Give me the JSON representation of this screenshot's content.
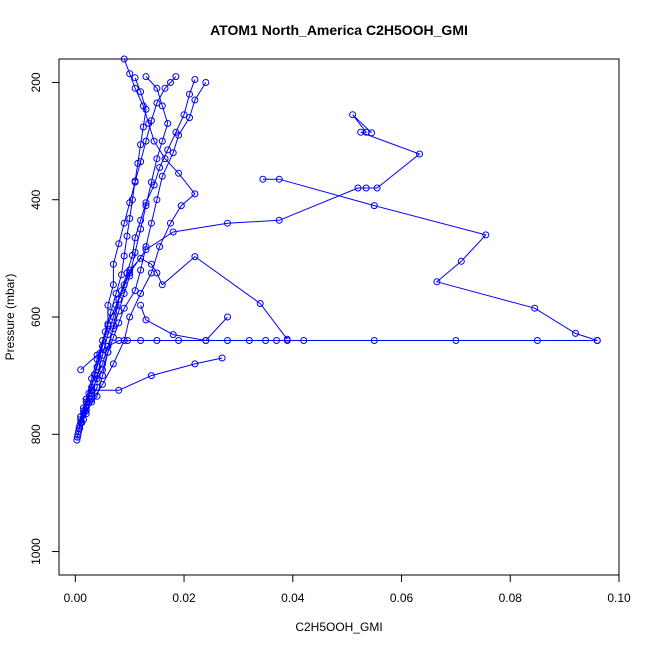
{
  "chart_data": {
    "type": "line",
    "title": "ATOM1 North_America C2H5OOH_GMI",
    "xlabel": "C2H5OOH_GMI",
    "ylabel": "Pressure (mbar)",
    "xlim": [
      -0.003,
      0.1
    ],
    "ylim": [
      1040,
      160
    ],
    "y_reversed": true,
    "x_ticks": [
      "0.00",
      "0.02",
      "0.04",
      "0.06",
      "0.08",
      "0.10"
    ],
    "x_tick_values": [
      0.0,
      0.02,
      0.04,
      0.06,
      0.08,
      0.1
    ],
    "y_ticks": [
      "200",
      "400",
      "600",
      "800",
      "1000"
    ],
    "y_tick_values": [
      200,
      400,
      600,
      800,
      1000
    ],
    "grid": false,
    "legend": "none",
    "color": "#0000ff",
    "marker": "open-circle",
    "series": [
      {
        "points": [
          [
            0.0003,
            810
          ],
          [
            0.0005,
            800
          ],
          [
            0.0008,
            785
          ],
          [
            0.001,
            770
          ],
          [
            0.0015,
            755
          ],
          [
            0.002,
            740
          ],
          [
            0.003,
            725
          ],
          [
            0.004,
            705
          ],
          [
            0.005,
            690
          ],
          [
            0.006,
            660
          ],
          [
            0.007,
            635
          ],
          [
            0.008,
            610
          ],
          [
            0.009,
            585
          ],
          [
            0.011,
            555
          ],
          [
            0.012,
            520
          ],
          [
            0.013,
            480
          ],
          [
            0.014,
            440
          ],
          [
            0.015,
            400
          ],
          [
            0.016,
            360
          ],
          [
            0.018,
            320
          ],
          [
            0.019,
            290
          ],
          [
            0.021,
            260
          ],
          [
            0.022,
            230
          ],
          [
            0.024,
            200
          ]
        ]
      },
      {
        "points": [
          [
            0.0004,
            805
          ],
          [
            0.0007,
            790
          ],
          [
            0.001,
            775
          ],
          [
            0.002,
            760
          ],
          [
            0.003,
            740
          ],
          [
            0.004,
            720
          ],
          [
            0.004,
            700
          ],
          [
            0.005,
            680
          ],
          [
            0.006,
            650
          ],
          [
            0.007,
            620
          ],
          [
            0.008,
            590
          ],
          [
            0.009,
            560
          ],
          [
            0.01,
            530
          ],
          [
            0.011,
            490
          ],
          [
            0.012,
            450
          ],
          [
            0.013,
            410
          ],
          [
            0.014,
            370
          ],
          [
            0.015,
            330
          ],
          [
            0.016,
            300
          ],
          [
            0.017,
            270
          ],
          [
            0.016,
            240
          ],
          [
            0.015,
            210
          ],
          [
            0.013,
            190
          ]
        ]
      },
      {
        "points": [
          [
            0.0005,
            800
          ],
          [
            0.001,
            780
          ],
          [
            0.0015,
            760
          ],
          [
            0.002,
            745
          ],
          [
            0.003,
            725
          ],
          [
            0.008,
            725
          ],
          [
            0.014,
            700
          ],
          [
            0.022,
            680
          ],
          [
            0.027,
            670
          ]
        ]
      },
      {
        "points": [
          [
            0.001,
            690
          ],
          [
            0.004,
            665
          ],
          [
            0.006,
            650
          ],
          [
            0.008,
            640
          ],
          [
            0.012,
            640
          ],
          [
            0.015,
            640
          ],
          [
            0.019,
            640
          ],
          [
            0.024,
            640
          ],
          [
            0.028,
            640
          ],
          [
            0.032,
            640
          ],
          [
            0.035,
            640
          ],
          [
            0.037,
            640
          ],
          [
            0.039,
            640
          ],
          [
            0.042,
            640
          ],
          [
            0.055,
            640
          ],
          [
            0.07,
            640
          ],
          [
            0.085,
            640
          ],
          [
            0.096,
            640
          ]
        ]
      },
      {
        "points": [
          [
            0.0096,
            640
          ],
          [
            0.096,
            640
          ],
          [
            0.092,
            628
          ],
          [
            0.0845,
            585
          ],
          [
            0.0665,
            540
          ],
          [
            0.071,
            505
          ],
          [
            0.0755,
            460
          ],
          [
            0.055,
            410
          ],
          [
            0.0375,
            365
          ],
          [
            0.0345,
            365
          ]
        ]
      },
      {
        "points": [
          [
            0.0012,
            780
          ],
          [
            0.002,
            760
          ],
          [
            0.004,
            735
          ],
          [
            0.005,
            700
          ],
          [
            0.006,
            660
          ],
          [
            0.007,
            615
          ],
          [
            0.008,
            570
          ],
          [
            0.01,
            525
          ],
          [
            0.013,
            485
          ],
          [
            0.018,
            455
          ],
          [
            0.028,
            440
          ],
          [
            0.0375,
            435
          ],
          [
            0.052,
            380
          ],
          [
            0.0535,
            380
          ],
          [
            0.0555,
            380
          ],
          [
            0.0633,
            322
          ],
          [
            0.0525,
            285
          ],
          [
            0.0535,
            285
          ],
          [
            0.051,
            255
          ],
          [
            0.0545,
            286
          ]
        ]
      },
      {
        "points": [
          [
            0.0015,
            775
          ],
          [
            0.003,
            745
          ],
          [
            0.005,
            715
          ],
          [
            0.007,
            680
          ],
          [
            0.009,
            640
          ],
          [
            0.01,
            600
          ],
          [
            0.012,
            560
          ],
          [
            0.014,
            525
          ],
          [
            0.0155,
            480
          ],
          [
            0.0175,
            440
          ],
          [
            0.0195,
            410
          ],
          [
            0.022,
            390
          ],
          [
            0.019,
            355
          ],
          [
            0.0165,
            330
          ],
          [
            0.0145,
            300
          ],
          [
            0.0135,
            270
          ],
          [
            0.0125,
            240
          ],
          [
            0.011,
            210
          ],
          [
            0.01,
            185
          ],
          [
            0.009,
            160
          ]
        ]
      },
      {
        "points": [
          [
            0.002,
            765
          ],
          [
            0.003,
            735
          ],
          [
            0.004,
            700
          ],
          [
            0.005,
            665
          ],
          [
            0.006,
            630
          ],
          [
            0.007,
            600
          ],
          [
            0.008,
            570
          ],
          [
            0.009,
            545
          ],
          [
            0.01,
            520
          ],
          [
            0.012,
            500
          ],
          [
            0.014,
            510
          ],
          [
            0.015,
            525
          ],
          [
            0.016,
            545
          ],
          [
            0.022,
            497
          ],
          [
            0.034,
            577
          ],
          [
            0.039,
            638
          ]
        ]
      },
      {
        "points": [
          [
            0.0008,
            790
          ],
          [
            0.002,
            755
          ],
          [
            0.003,
            720
          ],
          [
            0.004,
            685
          ],
          [
            0.005,
            650
          ],
          [
            0.006,
            615
          ],
          [
            0.006,
            580
          ],
          [
            0.007,
            545
          ],
          [
            0.007,
            510
          ],
          [
            0.008,
            475
          ],
          [
            0.009,
            440
          ],
          [
            0.01,
            405
          ],
          [
            0.011,
            370
          ],
          [
            0.012,
            335
          ],
          [
            0.013,
            300
          ],
          [
            0.014,
            265
          ],
          [
            0.015,
            235
          ],
          [
            0.0165,
            210
          ],
          [
            0.0175,
            200
          ],
          [
            0.0185,
            190
          ]
        ]
      },
      {
        "points": [
          [
            0.001,
            770
          ],
          [
            0.002,
            740
          ],
          [
            0.003,
            705
          ],
          [
            0.004,
            672
          ],
          [
            0.005,
            640
          ],
          [
            0.006,
            612
          ],
          [
            0.0075,
            580
          ],
          [
            0.0085,
            555
          ],
          [
            0.0095,
            525
          ],
          [
            0.0105,
            495
          ],
          [
            0.011,
            465
          ],
          [
            0.012,
            435
          ],
          [
            0.013,
            405
          ],
          [
            0.0145,
            375
          ],
          [
            0.0155,
            345
          ],
          [
            0.017,
            315
          ],
          [
            0.0185,
            285
          ],
          [
            0.02,
            255
          ],
          [
            0.021,
            220
          ],
          [
            0.022,
            195
          ]
        ]
      },
      {
        "points": [
          [
            0.0006,
            795
          ],
          [
            0.0015,
            765
          ],
          [
            0.0025,
            730
          ],
          [
            0.0035,
            698
          ],
          [
            0.0045,
            662
          ],
          [
            0.0055,
            625
          ],
          [
            0.0065,
            592
          ],
          [
            0.0075,
            560
          ],
          [
            0.0085,
            528
          ],
          [
            0.009,
            496
          ],
          [
            0.0095,
            462
          ],
          [
            0.01,
            432
          ],
          [
            0.0105,
            400
          ],
          [
            0.011,
            368
          ],
          [
            0.0115,
            338
          ],
          [
            0.012,
            306
          ],
          [
            0.0125,
            276
          ],
          [
            0.013,
            246
          ],
          [
            0.012,
            216
          ],
          [
            0.011,
            192
          ]
        ]
      },
      {
        "points": [
          [
            0.012,
            580
          ],
          [
            0.013,
            605
          ],
          [
            0.018,
            630
          ],
          [
            0.024,
            640
          ],
          [
            0.028,
            600
          ]
        ]
      }
    ]
  }
}
